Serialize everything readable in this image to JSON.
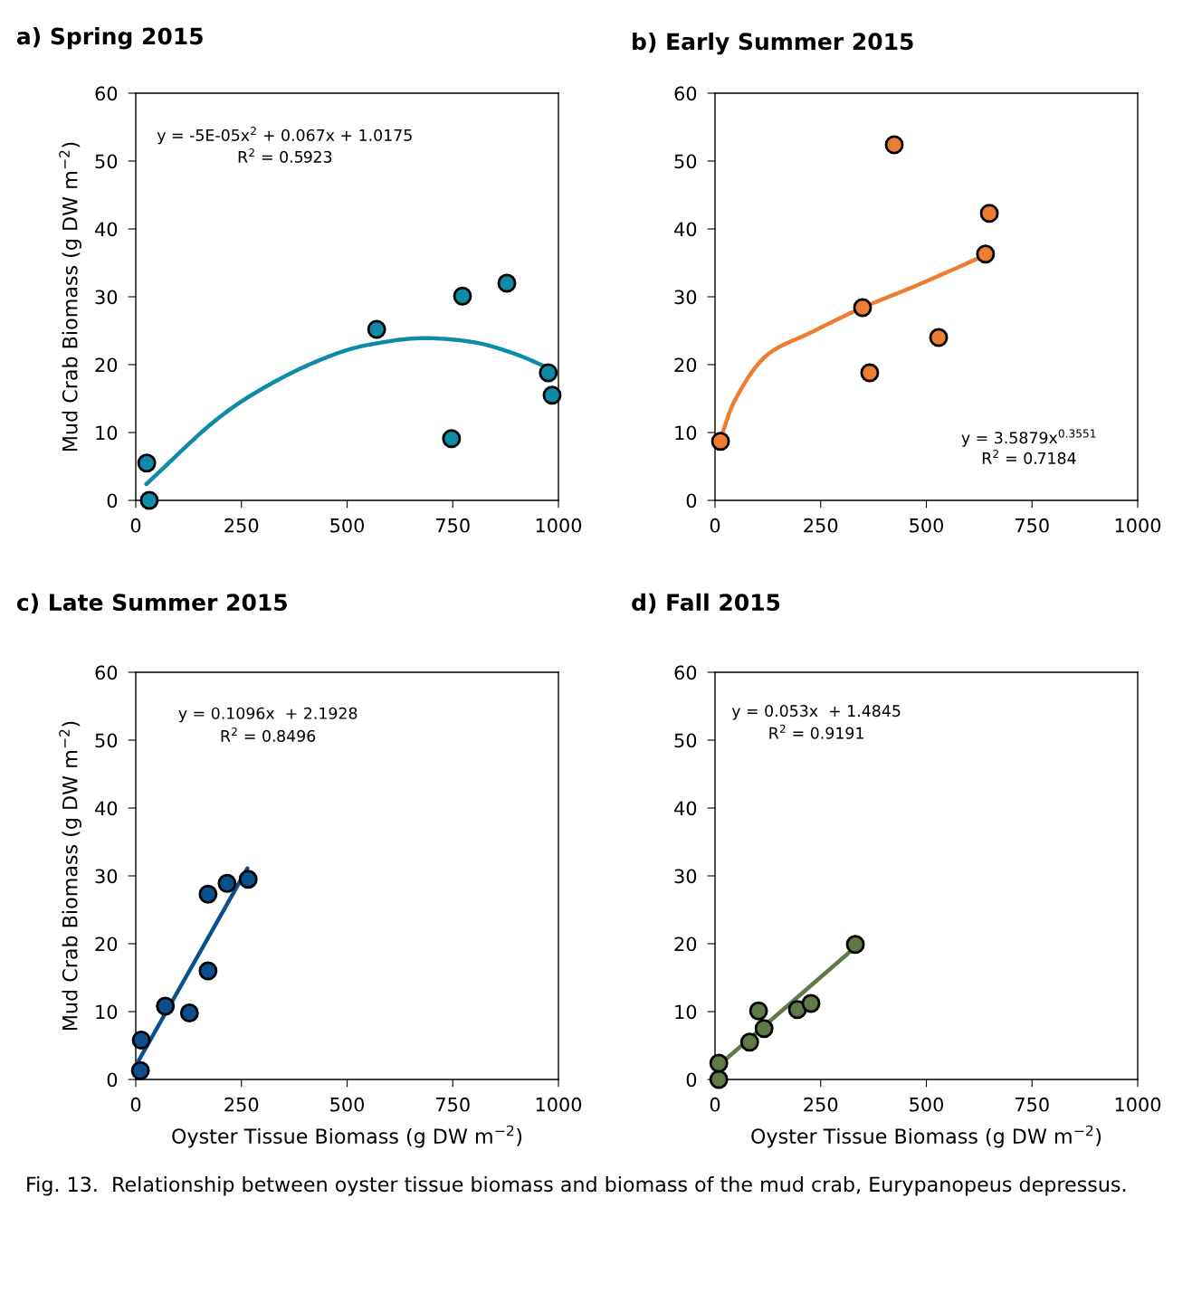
{
  "chart_data": [
    {
      "type": "scatter",
      "title": "a) Spring 2015",
      "ylabel": "Mud Crab Biomass (g DW m$^{−2}$)",
      "xlim": [
        0,
        1000
      ],
      "ylim": [
        0,
        60
      ],
      "xticks": [
        0,
        250,
        500,
        750,
        1000
      ],
      "yticks": [
        0,
        10,
        20,
        30,
        40,
        50,
        60
      ],
      "series": [
        {
          "color": "#0e8ba6",
          "marker": "circle",
          "x": [
            26,
            32,
            570,
            773,
            878,
            747,
            976,
            985
          ],
          "values": [
            5.5,
            0,
            25.2,
            30.1,
            32,
            9.1,
            18.8,
            15.5
          ]
        },
        {
          "type": "line",
          "marker": "none",
          "color": "#0e8ba6",
          "x": [
            25,
            193,
            335,
            478,
            585,
            685,
            800,
            892,
            970
          ],
          "values": [
            2.4,
            12.0,
            17.7,
            21.7,
            23.3,
            23.9,
            23.3,
            21.7,
            19.7
          ]
        }
      ],
      "annotations": [
        "y = -5E-05x$^{2}$ + 0.067x + 1.0175",
        "R$^{2}$ = 0.5923"
      ]
    },
    {
      "type": "scatter",
      "title": "b) Early Summer 2015",
      "xlim": [
        0,
        1000
      ],
      "ylim": [
        0,
        60
      ],
      "xticks": [
        0,
        250,
        500,
        750,
        1000
      ],
      "yticks": [
        0,
        10,
        20,
        30,
        40,
        50,
        60
      ],
      "series": [
        {
          "color": "#ed7d31",
          "marker": "circle",
          "x": [
            13,
            424,
            649,
            640,
            349,
            366,
            529
          ],
          "values": [
            8.7,
            52.4,
            42.3,
            36.3,
            28.4,
            18.8,
            24
          ]
        },
        {
          "type": "line",
          "marker": "none",
          "color": "#ed7d31",
          "x": [
            14,
            50,
            121,
            229,
            349,
            478,
            642
          ],
          "values": [
            9.3,
            15.1,
            21.3,
            24.8,
            28.4,
            31.7,
            36.2
          ]
        }
      ],
      "annotations": [
        "y = 3.5879x$^{0.3551}$",
        "R$^{2}$ = 0.7184"
      ]
    },
    {
      "type": "scatter",
      "title": "c) Late Summer 2015",
      "xlabel": "Oyster Tissue Biomass (g DW m$^{−2}$)",
      "ylabel": "Mud Crab Biomass (g DW m$^{−2}$)",
      "xlim": [
        0,
        1000
      ],
      "ylim": [
        0,
        60
      ],
      "xticks": [
        0,
        250,
        500,
        750,
        1000
      ],
      "yticks": [
        0,
        10,
        20,
        30,
        40,
        50,
        60
      ],
      "series": [
        {
          "color": "#0b4f8c",
          "marker": "circle",
          "x": [
            11,
            13,
            70,
            127,
            171,
            171,
            216,
            266
          ],
          "values": [
            1.3,
            5.8,
            10.8,
            9.8,
            16.0,
            27.3,
            28.9,
            29.5
          ]
        },
        {
          "type": "line",
          "marker": "none",
          "color": "#0b4f8c",
          "x": [
            7,
            264
          ],
          "values": [
            2.8,
            31.1
          ]
        }
      ],
      "annotations": [
        "y = 0.1096x  + 2.1928",
        "R$^{2}$ = 0.8496"
      ]
    },
    {
      "type": "scatter",
      "title": "d) Fall 2015",
      "xlabel": "Oyster Tissue Biomass (g DW m$^{−2}$)",
      "xlim": [
        0,
        1000
      ],
      "ylim": [
        0,
        60
      ],
      "xticks": [
        0,
        250,
        500,
        750,
        1000
      ],
      "yticks": [
        0,
        10,
        20,
        30,
        40,
        50,
        60
      ],
      "series": [
        {
          "color": "#5f7a46",
          "marker": "circle",
          "x": [
            9,
            9,
            82,
            116,
            103,
            195,
            227,
            332
          ],
          "values": [
            0,
            2.4,
            5.5,
            7.5,
            10.1,
            10.3,
            11.2,
            19.9
          ]
        },
        {
          "type": "line",
          "marker": "none",
          "color": "#5f7a46",
          "x": [
            11,
            332
          ],
          "values": [
            2.2,
            19.5
          ]
        }
      ],
      "annotations": [
        "y = 0.053x  + 1.4845",
        "R$^{2}$ = 0.9191",
        "Fig. 13.  Relationship between oyster tissue biomass and biomass of the mud crab, Eurypanopeus depressus."
      ]
    }
  ]
}
